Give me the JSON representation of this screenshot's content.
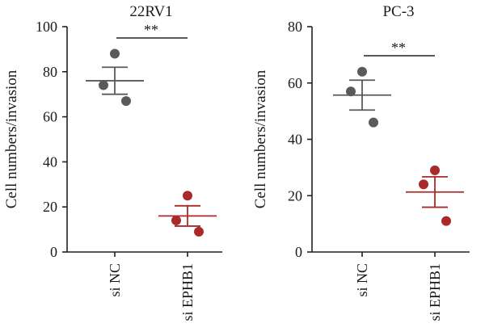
{
  "chart_data": [
    {
      "type": "scatter",
      "title": "22RV1",
      "ylabel": "Cell numbers/invasion",
      "xlabel": "",
      "ylim": [
        0,
        100
      ],
      "yticks": [
        0,
        20,
        40,
        60,
        80,
        100
      ],
      "categories": [
        "si NC",
        "si EPHB1"
      ],
      "colors": [
        "#5a5a5a",
        "#a92a2a"
      ],
      "groups": [
        {
          "category": "si NC",
          "points": [
            88,
            74,
            67
          ],
          "mean": 76,
          "error": 6
        },
        {
          "category": "si EPHB1",
          "points": [
            25,
            14,
            9
          ],
          "mean": 16,
          "error": 4.5
        }
      ],
      "significance": {
        "between": [
          "si NC",
          "si EPHB1"
        ],
        "label": "**"
      }
    },
    {
      "type": "scatter",
      "title": "PC-3",
      "ylabel": "Cell numbers/invasion",
      "xlabel": "",
      "ylim": [
        0,
        80
      ],
      "yticks": [
        0,
        20,
        40,
        60,
        80
      ],
      "categories": [
        "si NC",
        "si EPHB1"
      ],
      "colors": [
        "#5a5a5a",
        "#a92a2a"
      ],
      "groups": [
        {
          "category": "si NC",
          "points": [
            64,
            57,
            46
          ],
          "mean": 55.7,
          "error": 5.3
        },
        {
          "category": "si EPHB1",
          "points": [
            29,
            24,
            11
          ],
          "mean": 21.3,
          "error": 5.4
        }
      ],
      "significance": {
        "between": [
          "si NC",
          "si EPHB1"
        ],
        "label": "**"
      }
    }
  ]
}
